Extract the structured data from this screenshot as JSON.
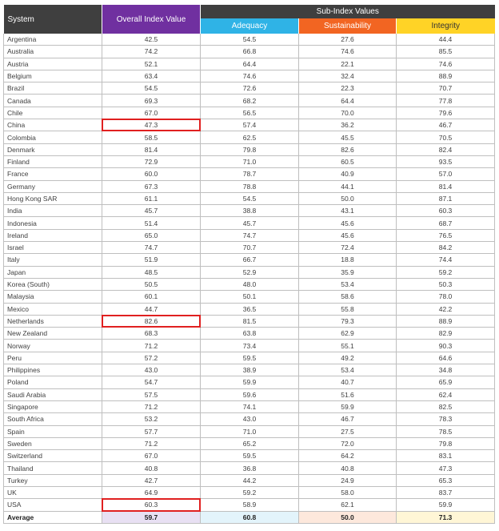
{
  "header": {
    "system": "System",
    "overall": "Overall Index Value",
    "sub_index": "Sub-Index Values",
    "adequacy": "Adequacy",
    "sustainability": "Sustainability",
    "integrity": "Integrity"
  },
  "highlight_color": "#e02020",
  "rows": [
    {
      "system": "Argentina",
      "overall": "42.5",
      "adequacy": "54.5",
      "sustainability": "27.6",
      "integrity": "44.4"
    },
    {
      "system": "Australia",
      "overall": "74.2",
      "adequacy": "66.8",
      "sustainability": "74.6",
      "integrity": "85.5"
    },
    {
      "system": "Austria",
      "overall": "52.1",
      "adequacy": "64.4",
      "sustainability": "22.1",
      "integrity": "74.6"
    },
    {
      "system": "Belgium",
      "overall": "63.4",
      "adequacy": "74.6",
      "sustainability": "32.4",
      "integrity": "88.9"
    },
    {
      "system": "Brazil",
      "overall": "54.5",
      "adequacy": "72.6",
      "sustainability": "22.3",
      "integrity": "70.7"
    },
    {
      "system": "Canada",
      "overall": "69.3",
      "adequacy": "68.2",
      "sustainability": "64.4",
      "integrity": "77.8"
    },
    {
      "system": "Chile",
      "overall": "67.0",
      "adequacy": "56.5",
      "sustainability": "70.0",
      "integrity": "79.6"
    },
    {
      "system": "China",
      "overall": "47.3",
      "adequacy": "57.4",
      "sustainability": "36.2",
      "integrity": "46.7",
      "highlight": true
    },
    {
      "system": "Colombia",
      "overall": "58.5",
      "adequacy": "62.5",
      "sustainability": "45.5",
      "integrity": "70.5"
    },
    {
      "system": "Denmark",
      "overall": "81.4",
      "adequacy": "79.8",
      "sustainability": "82.6",
      "integrity": "82.4"
    },
    {
      "system": "Finland",
      "overall": "72.9",
      "adequacy": "71.0",
      "sustainability": "60.5",
      "integrity": "93.5"
    },
    {
      "system": "France",
      "overall": "60.0",
      "adequacy": "78.7",
      "sustainability": "40.9",
      "integrity": "57.0"
    },
    {
      "system": "Germany",
      "overall": "67.3",
      "adequacy": "78.8",
      "sustainability": "44.1",
      "integrity": "81.4"
    },
    {
      "system": "Hong Kong SAR",
      "overall": "61.1",
      "adequacy": "54.5",
      "sustainability": "50.0",
      "integrity": "87.1"
    },
    {
      "system": "India",
      "overall": "45.7",
      "adequacy": "38.8",
      "sustainability": "43.1",
      "integrity": "60.3"
    },
    {
      "system": "Indonesia",
      "overall": "51.4",
      "adequacy": "45.7",
      "sustainability": "45.6",
      "integrity": "68.7"
    },
    {
      "system": "Ireland",
      "overall": "65.0",
      "adequacy": "74.7",
      "sustainability": "45.6",
      "integrity": "76.5"
    },
    {
      "system": "Israel",
      "overall": "74.7",
      "adequacy": "70.7",
      "sustainability": "72.4",
      "integrity": "84.2"
    },
    {
      "system": "Italy",
      "overall": "51.9",
      "adequacy": "66.7",
      "sustainability": "18.8",
      "integrity": "74.4"
    },
    {
      "system": "Japan",
      "overall": "48.5",
      "adequacy": "52.9",
      "sustainability": "35.9",
      "integrity": "59.2"
    },
    {
      "system": "Korea (South)",
      "overall": "50.5",
      "adequacy": "48.0",
      "sustainability": "53.4",
      "integrity": "50.3"
    },
    {
      "system": "Malaysia",
      "overall": "60.1",
      "adequacy": "50.1",
      "sustainability": "58.6",
      "integrity": "78.0"
    },
    {
      "system": "Mexico",
      "overall": "44.7",
      "adequacy": "36.5",
      "sustainability": "55.8",
      "integrity": "42.2"
    },
    {
      "system": "Netherlands",
      "overall": "82.6",
      "adequacy": "81.5",
      "sustainability": "79.3",
      "integrity": "88.9",
      "highlight": true
    },
    {
      "system": "New Zealand",
      "overall": "68.3",
      "adequacy": "63.8",
      "sustainability": "62.9",
      "integrity": "82.9"
    },
    {
      "system": "Norway",
      "overall": "71.2",
      "adequacy": "73.4",
      "sustainability": "55.1",
      "integrity": "90.3"
    },
    {
      "system": "Peru",
      "overall": "57.2",
      "adequacy": "59.5",
      "sustainability": "49.2",
      "integrity": "64.6"
    },
    {
      "system": "Philippines",
      "overall": "43.0",
      "adequacy": "38.9",
      "sustainability": "53.4",
      "integrity": "34.8"
    },
    {
      "system": "Poland",
      "overall": "54.7",
      "adequacy": "59.9",
      "sustainability": "40.7",
      "integrity": "65.9"
    },
    {
      "system": "Saudi Arabia",
      "overall": "57.5",
      "adequacy": "59.6",
      "sustainability": "51.6",
      "integrity": "62.4"
    },
    {
      "system": "Singapore",
      "overall": "71.2",
      "adequacy": "74.1",
      "sustainability": "59.9",
      "integrity": "82.5"
    },
    {
      "system": "South Africa",
      "overall": "53.2",
      "adequacy": "43.0",
      "sustainability": "46.7",
      "integrity": "78.3"
    },
    {
      "system": "Spain",
      "overall": "57.7",
      "adequacy": "71.0",
      "sustainability": "27.5",
      "integrity": "78.5"
    },
    {
      "system": "Sweden",
      "overall": "71.2",
      "adequacy": "65.2",
      "sustainability": "72.0",
      "integrity": "79.8"
    },
    {
      "system": "Switzerland",
      "overall": "67.0",
      "adequacy": "59.5",
      "sustainability": "64.2",
      "integrity": "83.1"
    },
    {
      "system": "Thailand",
      "overall": "40.8",
      "adequacy": "36.8",
      "sustainability": "40.8",
      "integrity": "47.3"
    },
    {
      "system": "Turkey",
      "overall": "42.7",
      "adequacy": "44.2",
      "sustainability": "24.9",
      "integrity": "65.3"
    },
    {
      "system": "UK",
      "overall": "64.9",
      "adequacy": "59.2",
      "sustainability": "58.0",
      "integrity": "83.7"
    },
    {
      "system": "USA",
      "overall": "60.3",
      "adequacy": "58.9",
      "sustainability": "62.1",
      "integrity": "59.9",
      "highlight": true
    }
  ],
  "average": {
    "system": "Average",
    "overall": "59.7",
    "adequacy": "60.8",
    "sustainability": "50.0",
    "integrity": "71.3"
  }
}
